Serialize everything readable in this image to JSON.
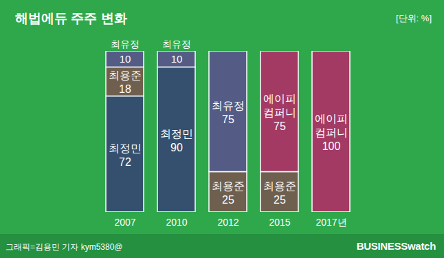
{
  "chart_data": {
    "type": "bar",
    "title": "해법에듀 주주 변화",
    "subtitle": "[단위: %]",
    "caption": "그래픽=김용민 기자 kym5380@",
    "source": "BUSINESSwatch",
    "categories": [
      "2007",
      "2010",
      "2012",
      "2015",
      "2017년"
    ],
    "series": [
      {
        "name": "최정민",
        "color": "#34506e",
        "values": [
          72,
          90,
          null,
          null,
          null
        ]
      },
      {
        "name": "최용준",
        "color": "#6f5f4f",
        "values": [
          18,
          null,
          25,
          25,
          null
        ]
      },
      {
        "name": "최유정",
        "color": "#545c86",
        "values": [
          10,
          10,
          75,
          null,
          null
        ]
      },
      {
        "name": "에이피 컴퍼니",
        "color": "#a33a64",
        "values": [
          null,
          null,
          null,
          75,
          100
        ]
      }
    ],
    "ylim": [
      0,
      100
    ],
    "stacked": true,
    "data_labels": true,
    "tick_labels": "x",
    "grid": false
  }
}
